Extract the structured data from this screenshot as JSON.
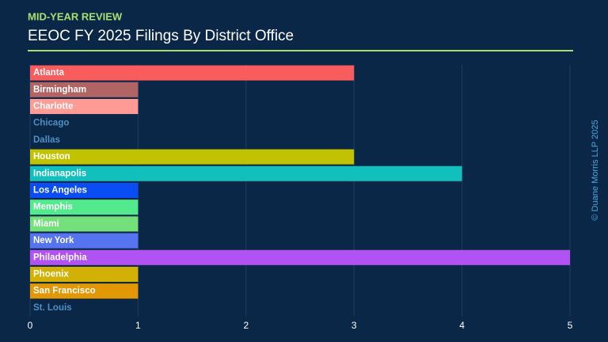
{
  "chart_data": {
    "type": "hbar",
    "kicker": "MID-YEAR REVIEW",
    "title": "EEOC FY 2025 Filings By District Office",
    "credit": "© Duane Morris LLP 2025",
    "categories": [
      "Atlanta",
      "Birmingham",
      "Charlotte",
      "Chicago",
      "Dallas",
      "Houston",
      "Indianapolis",
      "Los Angeles",
      "Memphis",
      "Miami",
      "New York",
      "Philadelphia",
      "Phoenix",
      "San Francisco",
      "St. Louis"
    ],
    "values": [
      3,
      1,
      1,
      0,
      0,
      3,
      4,
      1,
      1,
      1,
      1,
      5,
      1,
      1,
      0
    ],
    "colors": [
      "#f85c5c",
      "#b06464",
      "#ff9a94",
      "#4f8fc4",
      "#4f8fc4",
      "#c2c300",
      "#11c0bc",
      "#0a4df5",
      "#52ea8c",
      "#74e07c",
      "#5673f0",
      "#b153f2",
      "#d2b104",
      "#e29804",
      "#4f8fc4"
    ],
    "xlim": [
      0,
      5
    ],
    "xticks": [
      0,
      1,
      2,
      3,
      4,
      5
    ],
    "grid": true
  }
}
